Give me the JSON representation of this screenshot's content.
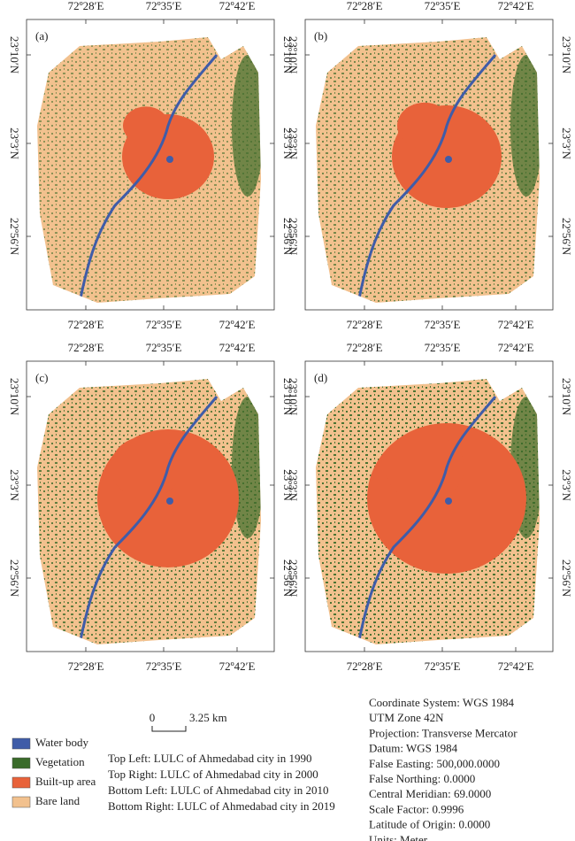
{
  "panels": [
    {
      "label": "(a)",
      "top": [
        "72º28′E",
        "72º35′E",
        "72º42′E"
      ],
      "bottom": [
        "72º28′E",
        "72º35′E",
        "72º42′E"
      ],
      "left": [
        "23º10′N",
        "23º3′N",
        "22º56′N"
      ],
      "right": [
        "23º10′N",
        "23º3′N",
        "22º56′N"
      ]
    },
    {
      "label": "(b)",
      "top": [
        "72º28′E",
        "72º35′E",
        "72º42′E"
      ],
      "bottom": [
        "72º28′E",
        "72º35′E",
        "72º42′E"
      ],
      "left": [
        "23º10′N",
        "23º3′N",
        "22º56′N"
      ],
      "right": [
        "23º10′N",
        "23º3′N",
        "22º56′N"
      ]
    },
    {
      "label": "(c)",
      "top": [
        "72º28′E",
        "72º35′E",
        "72º42′E"
      ],
      "bottom": [
        "72º28′E",
        "72º35′E",
        "72º42′E"
      ],
      "left": [
        "23º10′N",
        "23º3′N",
        "22º56′N"
      ],
      "right": [
        "23º10′N",
        "23º3′N",
        "22º56′N"
      ]
    },
    {
      "label": "(d)",
      "top": [
        "72º28′E",
        "72º35′E",
        "72º42′E"
      ],
      "bottom": [
        "72º28′E",
        "72º35′E",
        "72º42′E"
      ],
      "left": [
        "23º10′N",
        "23º3′N",
        "22º56′N"
      ],
      "right": [
        "23º10′N",
        "23º3′N",
        "22º56′N"
      ]
    }
  ],
  "scale_bar": {
    "zero": "0",
    "distance": "3.25 km"
  },
  "legend": [
    {
      "label": "Water body",
      "color": "#3f5ca8"
    },
    {
      "label": "Vegetation",
      "color": "#3a6b2a"
    },
    {
      "label": "Built-up area",
      "color": "#e8623a"
    },
    {
      "label": "Bare land",
      "color": "#f2c18e"
    }
  ],
  "captions": [
    "Top Left: LULC of Ahmedabad city in 1990",
    "Top Right: LULC of Ahmedabad city in 2000",
    "Bottom Left: LULC of Ahmedabad city in 2010",
    "Bottom Right: LULC of Ahmedabad city in 2019"
  ],
  "map_info": [
    "Coordinate System: WGS 1984",
    "UTM Zone 42N",
    "Projection: Transverse Mercator",
    "Datum: WGS 1984",
    "False Easting: 500,000.0000",
    "False Northing: 0.0000",
    "Central Meridian: 69.0000",
    "Scale Factor: 0.9996",
    "Latitude of Origin: 0.0000",
    "Units: Meter"
  ]
}
